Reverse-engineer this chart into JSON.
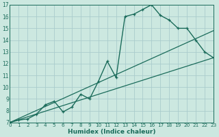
{
  "xlabel": "Humidex (Indice chaleur)",
  "xlim": [
    0,
    23
  ],
  "ylim": [
    7,
    17
  ],
  "xticks": [
    0,
    1,
    2,
    3,
    4,
    5,
    6,
    7,
    8,
    9,
    10,
    11,
    12,
    13,
    14,
    15,
    16,
    17,
    18,
    19,
    20,
    21,
    22,
    23
  ],
  "yticks": [
    7,
    8,
    9,
    10,
    11,
    12,
    13,
    14,
    15,
    16,
    17
  ],
  "bg_color": "#cce8e0",
  "line_color": "#1a6b5a",
  "grid_color": "#aacccc",
  "main_curve_x": [
    0,
    1,
    2,
    3,
    4,
    5,
    6,
    7,
    8,
    9,
    10,
    11,
    12,
    13,
    14,
    15,
    16,
    17,
    18,
    19,
    20,
    21,
    22,
    23
  ],
  "main_curve_y": [
    7.0,
    7.2,
    7.3,
    7.7,
    8.5,
    8.8,
    7.9,
    8.3,
    9.4,
    9.0,
    10.5,
    12.2,
    10.8,
    16.0,
    16.2,
    16.6,
    17.0,
    16.1,
    15.7,
    15.0,
    15.0,
    14.0,
    13.0,
    12.5
  ],
  "line1_x": [
    0,
    23
  ],
  "line1_y": [
    7.0,
    12.5
  ],
  "line2_x": [
    0,
    23
  ],
  "line2_y": [
    7.0,
    14.8
  ]
}
